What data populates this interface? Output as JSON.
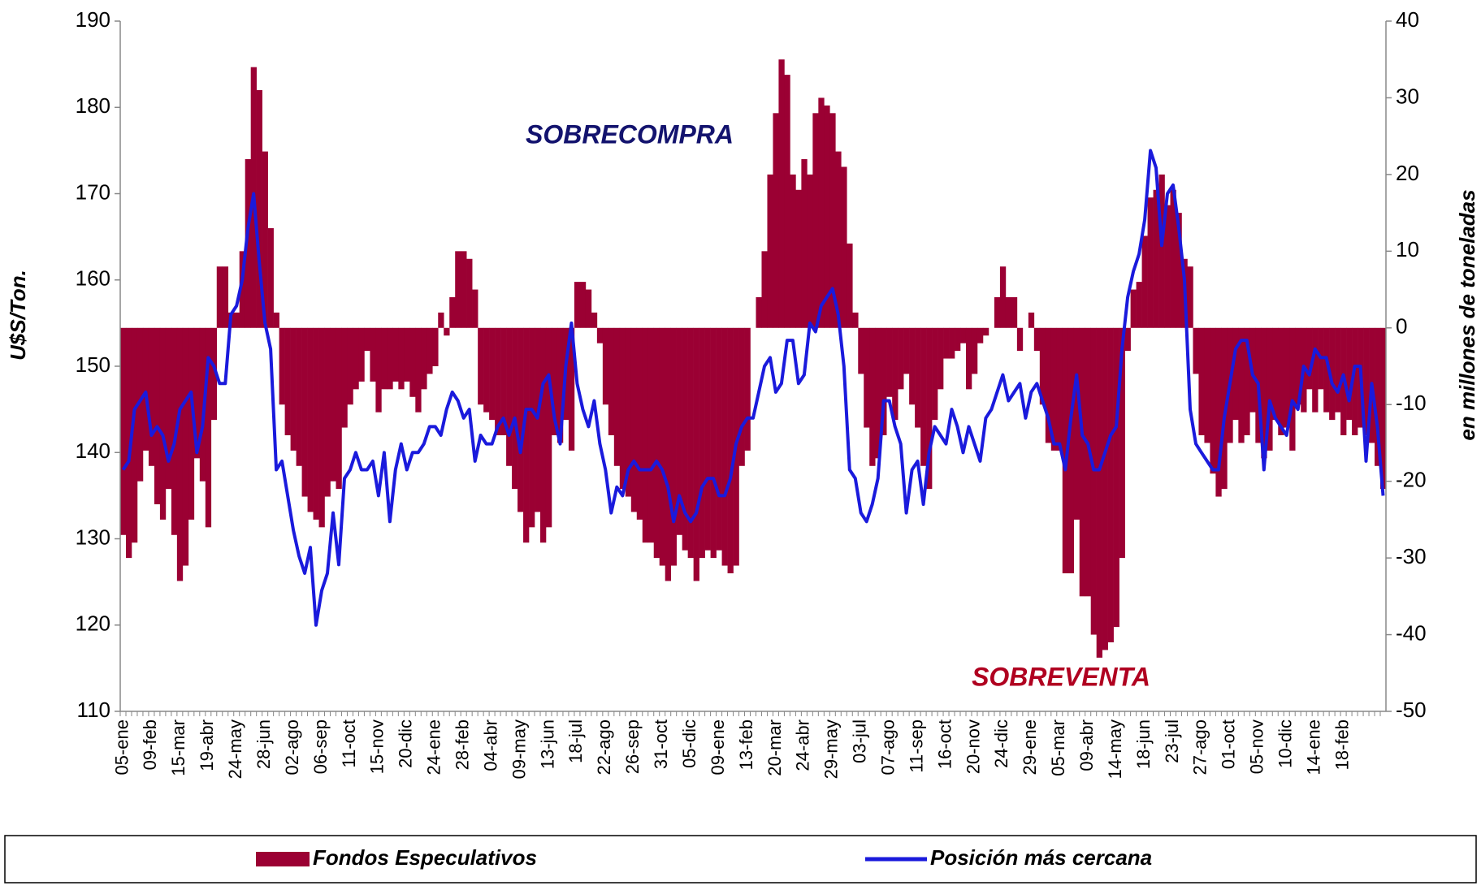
{
  "chart_data": {
    "type": "bar_line",
    "y_label": "U$S/Ton.",
    "y2_label": "en millones de toneladas",
    "annotations": [
      "SOBRECOMPRA",
      "SOBREVENTA"
    ],
    "ylim": [
      110,
      190
    ],
    "yticks": [
      110,
      120,
      130,
      140,
      150,
      160,
      170,
      180,
      190
    ],
    "y2lim": [
      -50,
      40
    ],
    "y2ticks": [
      -50,
      -40,
      -30,
      -20,
      -10,
      0,
      10,
      20,
      30,
      40
    ],
    "categories": [
      "05-ene",
      null,
      null,
      null,
      null,
      "09-feb",
      null,
      null,
      null,
      null,
      "15-mar",
      null,
      null,
      null,
      null,
      "19-abr",
      null,
      null,
      null,
      null,
      "24-may",
      null,
      null,
      null,
      null,
      "28-jun",
      null,
      null,
      null,
      null,
      "02-ago",
      null,
      null,
      null,
      null,
      "06-sep",
      null,
      null,
      null,
      null,
      "11-oct",
      null,
      null,
      null,
      null,
      "15-nov",
      null,
      null,
      null,
      null,
      "20-dic",
      null,
      null,
      null,
      null,
      "24-ene",
      null,
      null,
      null,
      null,
      "28-feb",
      null,
      null,
      null,
      null,
      "04-abr",
      null,
      null,
      null,
      null,
      "09-may",
      null,
      null,
      null,
      null,
      "13-jun",
      null,
      null,
      null,
      null,
      "18-jul",
      null,
      null,
      null,
      null,
      "22-ago",
      null,
      null,
      null,
      null,
      "26-sep",
      null,
      null,
      null,
      null,
      "31-oct",
      null,
      null,
      null,
      null,
      "05-dic",
      null,
      null,
      null,
      null,
      "09-ene",
      null,
      null,
      null,
      null,
      "13-feb",
      null,
      null,
      null,
      null,
      "20-mar",
      null,
      null,
      null,
      null,
      "24-abr",
      null,
      null,
      null,
      null,
      "29-may",
      null,
      null,
      null,
      null,
      "03-jul",
      null,
      null,
      null,
      null,
      "07-ago",
      null,
      null,
      null,
      null,
      "11-sep",
      null,
      null,
      null,
      null,
      "16-oct",
      null,
      null,
      null,
      null,
      "20-nov",
      null,
      null,
      null,
      null,
      "24-dic",
      null,
      null,
      null,
      null,
      "29-ene",
      null,
      null,
      null,
      null,
      "05-mar",
      null,
      null,
      null,
      null,
      "09-abr",
      null,
      null,
      null,
      null,
      "14-may",
      null,
      null,
      null,
      null,
      "18-jun",
      null,
      null,
      null,
      null,
      "23-jul",
      null,
      null,
      null,
      null,
      "27-ago",
      null,
      null,
      null,
      null,
      "01-oct",
      null,
      null,
      null,
      null,
      "05-nov",
      null,
      null,
      null,
      null,
      "10-dic",
      null,
      null,
      null,
      null,
      "14-ene",
      null,
      null,
      null,
      null,
      "18-feb",
      null,
      null,
      null,
      null,
      null,
      null,
      null
    ],
    "series": [
      {
        "name": "Fondos Especulativos",
        "color": "#9b0033",
        "axis": "y2",
        "kind": "bar",
        "values": [
          -27,
          -30,
          -28,
          -20,
          -16,
          -18,
          -23,
          -25,
          -21,
          -27,
          -33,
          -31,
          -25,
          -17,
          -20,
          -26,
          -12,
          8,
          8,
          2,
          2,
          10,
          22,
          34,
          31,
          23,
          13,
          2,
          -10,
          -14,
          -16,
          -18,
          -22,
          -24,
          -25,
          -26,
          -22,
          -20,
          -21,
          -13,
          -10,
          -8,
          -7,
          -3,
          -7,
          -11,
          -8,
          -8,
          -7,
          -8,
          -7,
          -9,
          -11,
          -8,
          -6,
          -5,
          2,
          -1,
          4,
          10,
          10,
          9,
          5,
          -10,
          -11,
          -12,
          -14,
          -14,
          -18,
          -21,
          -24,
          -28,
          -26,
          -24,
          -28,
          -26,
          -14,
          -15,
          -12,
          -16,
          6,
          6,
          5,
          2,
          -2,
          -10,
          -14,
          -18,
          -21,
          -22,
          -24,
          -25,
          -28,
          -28,
          -30,
          -31,
          -33,
          -31,
          -27,
          -29,
          -30,
          -33,
          -30,
          -29,
          -30,
          -29,
          -31,
          -32,
          -31,
          -18,
          -16,
          0,
          4,
          10,
          20,
          28,
          35,
          33,
          20,
          18,
          22,
          20,
          28,
          30,
          29,
          28,
          23,
          21,
          11,
          2,
          -6,
          -13,
          -18,
          -17,
          -14,
          -9,
          -12,
          -8,
          -6,
          -10,
          -13,
          -18,
          -21,
          -12,
          -8,
          -4,
          -4,
          -3,
          -2,
          -8,
          -6,
          -2,
          -1,
          0,
          4,
          8,
          4,
          4,
          -3,
          0,
          2,
          -3,
          -10,
          -15,
          -16,
          -16,
          -32,
          -32,
          -25,
          -35,
          -35,
          -40,
          -43,
          -42,
          -41,
          -39,
          -30,
          -3,
          5,
          6,
          12,
          17,
          18,
          20,
          16,
          18,
          15,
          9,
          8,
          -6,
          -14,
          -15,
          -19,
          -22,
          -21,
          -15,
          -12,
          -15,
          -14,
          -11,
          -15,
          -17,
          -16,
          -12,
          -14,
          -13,
          -16,
          -10,
          -11,
          -8,
          -11,
          -8,
          -11,
          -12,
          -11,
          -14,
          -12,
          -14,
          -13,
          -14,
          -15,
          -18,
          -21
        ]
      },
      {
        "name": "Posición más cercana",
        "color": "#1a1adc",
        "axis": "y",
        "kind": "line",
        "values": [
          138,
          139,
          145,
          146,
          147,
          142,
          143,
          142,
          139,
          141,
          145,
          146,
          147,
          140,
          143,
          151,
          150,
          148,
          148,
          156,
          157,
          160,
          166,
          170,
          162,
          155,
          152,
          138,
          139,
          135,
          131,
          128,
          126,
          129,
          120,
          124,
          126,
          133,
          127,
          137,
          138,
          140,
          138,
          138,
          139,
          135,
          140,
          132,
          138,
          141,
          138,
          140,
          140,
          141,
          143,
          143,
          142,
          145,
          147,
          146,
          144,
          145,
          139,
          142,
          141,
          141,
          143,
          144,
          142,
          144,
          140,
          145,
          145,
          144,
          148,
          149,
          144,
          141,
          150,
          155,
          148,
          145,
          143,
          146,
          141,
          138,
          133,
          136,
          135,
          138,
          139,
          138,
          138,
          138,
          139,
          138,
          136,
          132,
          135,
          133,
          132,
          133,
          136,
          137,
          137,
          135,
          135,
          137,
          141,
          143,
          144,
          144,
          147,
          150,
          151,
          147,
          148,
          153,
          153,
          148,
          149,
          155,
          154,
          157,
          158,
          159,
          156,
          150,
          138,
          137,
          133,
          132,
          134,
          137,
          146,
          146,
          143,
          141,
          133,
          138,
          139,
          134,
          140,
          143,
          142,
          141,
          145,
          143,
          140,
          143,
          141,
          139,
          144,
          145,
          147,
          149,
          146,
          147,
          148,
          144,
          147,
          148,
          146,
          144,
          141,
          141,
          138,
          144,
          149,
          142,
          141,
          138,
          138,
          140,
          142,
          143,
          152,
          158,
          161,
          163,
          167,
          175,
          173,
          164,
          170,
          171,
          166,
          160,
          145,
          141,
          140,
          139,
          138,
          138,
          144,
          148,
          152,
          153,
          153,
          149,
          148,
          138,
          146,
          144,
          143,
          142,
          146,
          145,
          150,
          149,
          152,
          151,
          151,
          148,
          147,
          149,
          146,
          150,
          150,
          139,
          148,
          143,
          135
        ]
      }
    ]
  }
}
